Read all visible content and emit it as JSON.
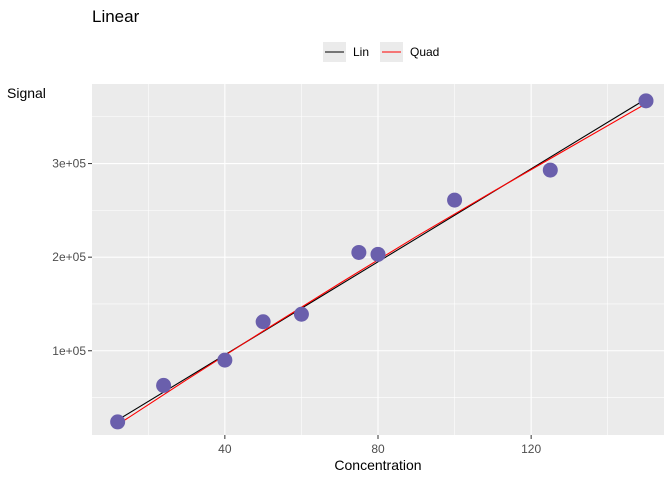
{
  "chart_data": {
    "type": "scatter",
    "title": "Linear",
    "xlabel": "Concentration",
    "ylabel": "Signal",
    "xlim": [
      5.3,
      154.7
    ],
    "ylim": [
      10000,
      385000
    ],
    "x_ticks": [
      40,
      80,
      120
    ],
    "x_tick_labels": [
      "40",
      "80",
      "120"
    ],
    "y_ticks": [
      100000,
      200000,
      300000
    ],
    "y_tick_labels": [
      "1e+05",
      "2e+05",
      "3e+05"
    ],
    "grid": true,
    "legend_position": "top",
    "points": {
      "color": "#6a5fac",
      "x": [
        12,
        24,
        40,
        50,
        60,
        75,
        80,
        100,
        125,
        150
      ],
      "y": [
        24000,
        63000,
        90000,
        131000,
        139000,
        205000,
        203000,
        261000,
        293000,
        367000
      ]
    },
    "series": [
      {
        "name": "Lin",
        "color": "#000000",
        "x": [
          12,
          150
        ],
        "y": [
          26000,
          369000
        ]
      },
      {
        "name": "Quad",
        "color": "#ff0000",
        "x": [
          12,
          30,
          50,
          70,
          90,
          110,
          130,
          150
        ],
        "y": [
          21000,
          69000,
          121000,
          172000,
          222000,
          270000,
          317000,
          364000
        ]
      }
    ]
  }
}
